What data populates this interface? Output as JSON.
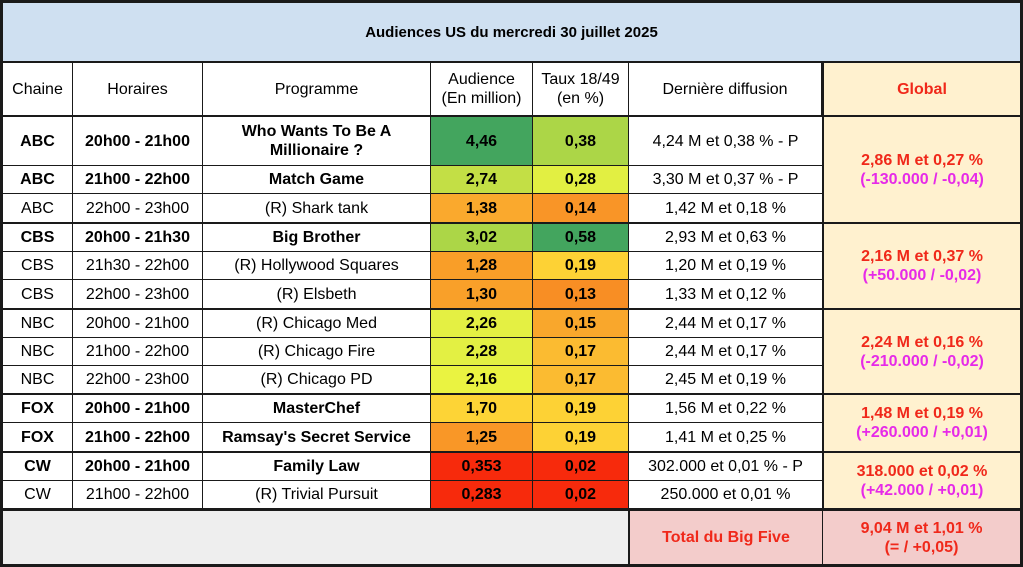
{
  "title": "Audiences US du mercredi 30 juillet 2025",
  "headers": {
    "chaine": "Chaine",
    "horaires": "Horaires",
    "programme": "Programme",
    "audience_l1": "Audience",
    "audience_l2": "(En million)",
    "taux_l1": "Taux 18/49",
    "taux_l2": "(en %)",
    "derniere": "Dernière diffusion",
    "global": "Global"
  },
  "rows": [
    {
      "chaine": "ABC",
      "horaires": "20h00 - 21h00",
      "programme": "Who Wants To Be A Millionaire ?",
      "audience": "4,46",
      "taux": "0,38",
      "derniere": "4,24 M et 0,38 % - P",
      "bold": true,
      "aud_color": "#43a55e",
      "taux_color": "#acd647"
    },
    {
      "chaine": "ABC",
      "horaires": "21h00 - 22h00",
      "programme": "Match Game",
      "audience": "2,74",
      "taux": "0,28",
      "derniere": "3,30 M et 0,37 % - P",
      "bold": true,
      "aud_color": "#c3df45",
      "taux_color": "#e2ef42"
    },
    {
      "chaine": "ABC",
      "horaires": "22h00 - 23h00",
      "programme": "(R) Shark tank",
      "audience": "1,38",
      "taux": "0,14",
      "derniere": "1,42 M et 0,18 %",
      "bold": false,
      "aud_color": "#faa92d",
      "taux_color": "#f99527"
    },
    {
      "chaine": "CBS",
      "horaires": "20h00 - 21h30",
      "programme": "Big Brother",
      "audience": "3,02",
      "taux": "0,58",
      "derniere": "2,93 M et 0,63 %",
      "bold": true,
      "aud_color": "#acd647",
      "taux_color": "#43a55e"
    },
    {
      "chaine": "CBS",
      "horaires": "21h30 - 22h00",
      "programme": "(R) Hollywood Squares",
      "audience": "1,28",
      "taux": "0,19",
      "derniere": "1,20 M et 0,19 %",
      "bold": false,
      "aud_color": "#f99e28",
      "taux_color": "#fdd235"
    },
    {
      "chaine": "CBS",
      "horaires": "22h00 - 23h00",
      "programme": "(R) Elsbeth",
      "audience": "1,30",
      "taux": "0,13",
      "derniere": "1,33 M et 0,12 %",
      "bold": false,
      "aud_color": "#f9a029",
      "taux_color": "#f88e24"
    },
    {
      "chaine": "NBC",
      "horaires": "20h00 - 21h00",
      "programme": "(R) Chicago Med",
      "audience": "2,26",
      "taux": "0,15",
      "derniere": "2,44 M et 0,17 %",
      "bold": false,
      "aud_color": "#e4f043",
      "taux_color": "#f9a72c"
    },
    {
      "chaine": "NBC",
      "horaires": "21h00 - 22h00",
      "programme": "(R) Chicago Fire",
      "audience": "2,28",
      "taux": "0,17",
      "derniere": "2,44 M et 0,17 %",
      "bold": false,
      "aud_color": "#e3f043",
      "taux_color": "#fbbb31"
    },
    {
      "chaine": "NBC",
      "horaires": "22h00 - 23h00",
      "programme": "(R) Chicago PD",
      "audience": "2,16",
      "taux": "0,17",
      "derniere": "2,45 M et 0,19 %",
      "bold": false,
      "aud_color": "#eaf341",
      "taux_color": "#fbbb31"
    },
    {
      "chaine": "FOX",
      "horaires": "20h00 - 21h00",
      "programme": "MasterChef",
      "audience": "1,70",
      "taux": "0,19",
      "derniere": "1,56 M et 0,22 %",
      "bold": true,
      "aud_color": "#fdd436",
      "taux_color": "#fdd235"
    },
    {
      "chaine": "FOX",
      "horaires": "21h00 - 22h00",
      "programme": "Ramsay's Secret Service",
      "audience": "1,25",
      "taux": "0,19",
      "derniere": "1,41 M et 0,25 %",
      "bold": true,
      "aud_color": "#f99727",
      "taux_color": "#fdd235"
    },
    {
      "chaine": "CW",
      "horaires": "20h00 - 21h00",
      "programme": "Family Law",
      "audience": "0,353",
      "taux": "0,02",
      "derniere": "302.000 et 0,01 % - P",
      "bold": true,
      "aud_color": "#f72a0c",
      "taux_color": "#f72a0c"
    },
    {
      "chaine": "CW",
      "horaires": "21h00 - 22h00",
      "programme": "(R) Trivial Pursuit",
      "audience": "0,283",
      "taux": "0,02",
      "derniere": "250.000 et 0,01 %",
      "bold": false,
      "aud_color": "#f72a0c",
      "taux_color": "#f72a0c"
    }
  ],
  "globals": [
    {
      "network": "ABC",
      "main": "2,86 M et 0,27 %",
      "diff": "(-130.000 / -0,04)"
    },
    {
      "network": "CBS",
      "main": "2,16 M et 0,37 %",
      "diff": "(+50.000 / -0,02)"
    },
    {
      "network": "NBC",
      "main": "2,24 M et 0,16 %",
      "diff": "(-210.000 / -0,02)"
    },
    {
      "network": "FOX",
      "main": "1,48 M et 0,19 %",
      "diff": "(+260.000 / +0,01)"
    },
    {
      "network": "CW",
      "main": "318.000 et 0,02 %",
      "diff": "(+42.000 / +0,01)"
    }
  ],
  "total": {
    "label": "Total du Big Five",
    "main": "9,04 M et 1,01 %",
    "diff": "(= / +0,05)"
  },
  "colors": {
    "title_bg": "#cfe0f1",
    "global_bg": "#fff1cf",
    "global_text": "#f0281a",
    "diff_text": "#e62ae8",
    "total_bg": "#f3cccb"
  }
}
